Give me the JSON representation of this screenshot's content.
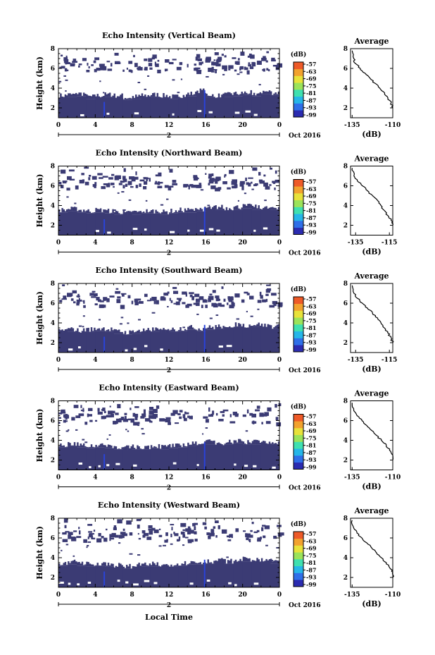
{
  "figure": {
    "xlabel": "Local Time",
    "date_label": "Oct 2016",
    "day_label": "2",
    "ylabel": "Height (km)",
    "colorbar_unit": "(dB)",
    "avg_title": "Average",
    "avg_xlabel": "(dB)",
    "colors": {
      "echo": "#3b3b74",
      "echo_strong": "#2a43d8",
      "axis": "#000000"
    }
  },
  "chart_data": [
    {
      "type": "heatmap",
      "title": "Echo Intensity (Vertical Beam)",
      "x_ticks": [
        "0",
        "4",
        "8",
        "12",
        "16",
        "20",
        "0"
      ],
      "y_ticks": [
        "2",
        "4",
        "6",
        "8"
      ],
      "colorbar_ticks": [
        "-57",
        "-63",
        "-69",
        "-75",
        "-81",
        "-87",
        "-93",
        "-99"
      ],
      "avg_x_ticks": [
        "-135",
        "-110"
      ],
      "avg_y_ticks": [
        "2",
        "4",
        "6",
        "8"
      ],
      "xlim": [
        0,
        24
      ],
      "ylim": [
        1,
        8
      ],
      "avg_xlim": [
        -136,
        -110
      ],
      "dense_top_km": [
        3.0,
        3.1,
        3.2,
        2.9,
        3.0,
        3.1,
        3.0,
        2.8,
        2.9,
        3.0,
        3.1,
        3.0,
        2.9,
        3.0,
        3.2,
        3.5,
        3.1,
        3.0,
        3.1,
        3.2,
        3.3,
        3.2,
        3.4,
        3.3
      ],
      "avg_profile": {
        "db": [
          -135,
          -134,
          -133,
          -130,
          -127,
          -124,
          -121,
          -118,
          -115,
          -113,
          -111,
          -110
        ],
        "km": [
          7.8,
          7.0,
          6.5,
          6.0,
          5.5,
          5.0,
          4.5,
          4.0,
          3.5,
          3.0,
          2.5,
          2.0
        ]
      }
    },
    {
      "type": "heatmap",
      "title": "Echo Intensity (Northward Beam)",
      "x_ticks": [
        "0",
        "4",
        "8",
        "12",
        "16",
        "20",
        "0"
      ],
      "y_ticks": [
        "2",
        "4",
        "6",
        "8"
      ],
      "colorbar_ticks": [
        "-57",
        "-63",
        "-69",
        "-75",
        "-81",
        "-87",
        "-93",
        "-99"
      ],
      "avg_x_ticks": [
        "-135",
        "-115"
      ],
      "avg_y_ticks": [
        "2",
        "4",
        "6",
        "8"
      ],
      "xlim": [
        0,
        24
      ],
      "ylim": [
        1,
        8
      ],
      "avg_xlim": [
        -138,
        -113
      ],
      "dense_top_km": [
        3.3,
        3.4,
        3.3,
        3.2,
        3.3,
        3.2,
        3.1,
        3.0,
        3.1,
        3.2,
        3.2,
        3.1,
        3.2,
        3.3,
        3.3,
        3.4,
        3.5,
        3.6,
        3.5,
        3.6,
        3.7,
        3.6,
        3.5,
        3.6
      ],
      "avg_profile": {
        "db": [
          -137,
          -136,
          -134,
          -131,
          -128,
          -125,
          -122,
          -120,
          -118,
          -116,
          -114,
          -113
        ],
        "km": [
          7.8,
          7.0,
          6.5,
          6.0,
          5.5,
          5.0,
          4.5,
          4.0,
          3.5,
          3.0,
          2.5,
          2.0
        ]
      }
    },
    {
      "type": "heatmap",
      "title": "Echo Intensity (Southward Beam)",
      "x_ticks": [
        "0",
        "4",
        "8",
        "12",
        "16",
        "20",
        "0"
      ],
      "y_ticks": [
        "2",
        "4",
        "6",
        "8"
      ],
      "colorbar_ticks": [
        "-57",
        "-63",
        "-69",
        "-75",
        "-81",
        "-87",
        "-93",
        "-99"
      ],
      "avg_x_ticks": [
        "-135",
        "-115"
      ],
      "avg_y_ticks": [
        "2",
        "4",
        "6",
        "8"
      ],
      "xlim": [
        0,
        24
      ],
      "ylim": [
        1,
        8
      ],
      "avg_xlim": [
        -138,
        -113
      ],
      "dense_top_km": [
        3.0,
        3.1,
        3.0,
        3.1,
        3.2,
        3.1,
        2.9,
        2.8,
        2.9,
        3.0,
        3.1,
        3.0,
        3.1,
        3.2,
        3.3,
        3.2,
        3.3,
        3.4,
        3.5,
        3.6,
        3.5,
        3.6,
        3.5,
        3.4
      ],
      "avg_profile": {
        "db": [
          -137,
          -136,
          -134,
          -131,
          -128,
          -125,
          -122,
          -120,
          -118,
          -116,
          -114,
          -113
        ],
        "km": [
          7.8,
          7.0,
          6.5,
          6.0,
          5.5,
          5.0,
          4.5,
          4.0,
          3.5,
          3.0,
          2.5,
          2.0
        ]
      }
    },
    {
      "type": "heatmap",
      "title": "Echo Intensity (Eastward Beam)",
      "x_ticks": [
        "0",
        "4",
        "8",
        "12",
        "16",
        "20",
        "0"
      ],
      "y_ticks": [
        "2",
        "4",
        "6",
        "8"
      ],
      "colorbar_ticks": [
        "-57",
        "-63",
        "-69",
        "-75",
        "-81",
        "-87",
        "-93",
        "-99"
      ],
      "avg_x_ticks": [
        "-135",
        "-110"
      ],
      "avg_y_ticks": [
        "2",
        "4",
        "6",
        "8"
      ],
      "xlim": [
        0,
        24
      ],
      "ylim": [
        1,
        8
      ],
      "avg_xlim": [
        -136,
        -110
      ],
      "dense_top_km": [
        3.3,
        3.4,
        3.3,
        3.2,
        3.3,
        3.2,
        3.1,
        3.0,
        3.1,
        3.1,
        3.2,
        3.1,
        3.2,
        3.3,
        3.4,
        3.5,
        3.6,
        3.5,
        3.6,
        3.7,
        3.6,
        3.6,
        3.5,
        3.6
      ],
      "avg_profile": {
        "db": [
          -135,
          -134,
          -132,
          -129,
          -126,
          -123,
          -120,
          -117,
          -114,
          -112,
          -110,
          -110
        ],
        "km": [
          7.8,
          7.0,
          6.5,
          6.0,
          5.5,
          5.0,
          4.5,
          4.0,
          3.5,
          3.0,
          2.5,
          2.0
        ]
      }
    },
    {
      "type": "heatmap",
      "title": "Echo Intensity (Westward Beam)",
      "x_ticks": [
        "0",
        "4",
        "8",
        "12",
        "16",
        "20",
        "0"
      ],
      "y_ticks": [
        "2",
        "4",
        "6",
        "8"
      ],
      "colorbar_ticks": [
        "-57",
        "-63",
        "-69",
        "-75",
        "-81",
        "-87",
        "-93",
        "-99"
      ],
      "avg_x_ticks": [
        "-135",
        "-110"
      ],
      "avg_y_ticks": [
        "2",
        "4",
        "6",
        "8"
      ],
      "xlim": [
        0,
        24
      ],
      "ylim": [
        1,
        8
      ],
      "avg_xlim": [
        -136,
        -110
      ],
      "dense_top_km": [
        3.2,
        3.3,
        3.2,
        3.1,
        3.2,
        3.1,
        3.0,
        2.9,
        3.0,
        3.1,
        3.1,
        3.0,
        3.1,
        3.2,
        3.3,
        3.3,
        3.4,
        3.5,
        3.4,
        3.5,
        3.6,
        3.5,
        3.5,
        3.4
      ],
      "avg_profile": {
        "db": [
          -135,
          -134,
          -132,
          -129,
          -126,
          -123,
          -120,
          -117,
          -114,
          -112,
          -110,
          -110
        ],
        "km": [
          7.8,
          7.0,
          6.5,
          6.0,
          5.5,
          5.0,
          4.5,
          4.0,
          3.5,
          3.0,
          2.5,
          2.0
        ]
      }
    }
  ]
}
